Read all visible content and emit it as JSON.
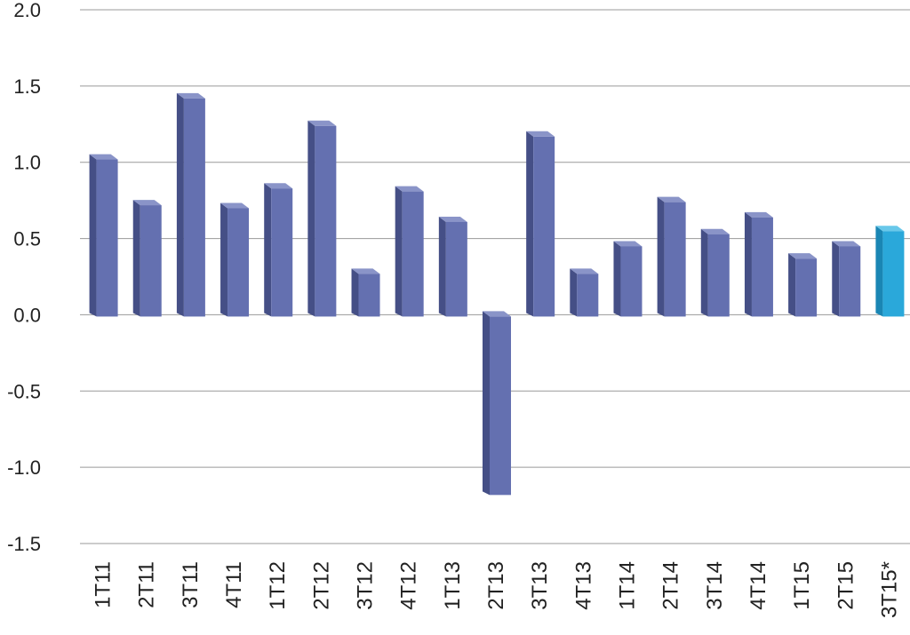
{
  "chart_data": {
    "type": "bar",
    "title": "",
    "xlabel": "",
    "ylabel": "",
    "categories": [
      "1T11",
      "2T11",
      "3T11",
      "4T11",
      "1T12",
      "2T12",
      "3T12",
      "4T12",
      "1T13",
      "2T13",
      "3T13",
      "4T13",
      "1T14",
      "2T14",
      "3T14",
      "4T14",
      "1T15",
      "2T15",
      "3T15*"
    ],
    "values": [
      1.03,
      0.73,
      1.43,
      0.71,
      0.84,
      1.25,
      0.28,
      0.82,
      0.62,
      -1.17,
      1.18,
      0.28,
      0.46,
      0.75,
      0.54,
      0.65,
      0.38,
      0.46,
      0.56
    ],
    "ylim": [
      -1.5,
      2.0
    ],
    "yticks": [
      "2.0",
      "1.5",
      "1.0",
      "0.5",
      "0.0",
      "-0.5",
      "-1.0",
      "-1.5"
    ],
    "grid": true,
    "style": "3d-bars",
    "colors": {
      "bar_front": "#6470b0",
      "bar_side": "#454f86",
      "bar_top": "#8a94c8",
      "highlight_front": "#2aa8da",
      "highlight_side": "#1a86b4",
      "highlight_top": "#68c8ea",
      "grid": "#9a9a9a"
    },
    "highlight_category": "3T15*"
  }
}
